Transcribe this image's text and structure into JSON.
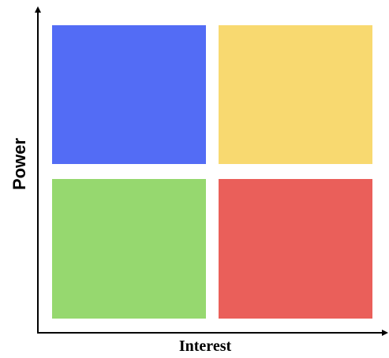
{
  "axes": {
    "x_label": "Interest",
    "y_label": "Power",
    "color": "#000000"
  },
  "quadrants": [
    {
      "position": "top-left",
      "color": "#536cf5"
    },
    {
      "position": "top-right",
      "color": "#f8d970"
    },
    {
      "position": "bottom-left",
      "color": "#96d86f"
    },
    {
      "position": "bottom-right",
      "color": "#ea5f5a"
    }
  ]
}
